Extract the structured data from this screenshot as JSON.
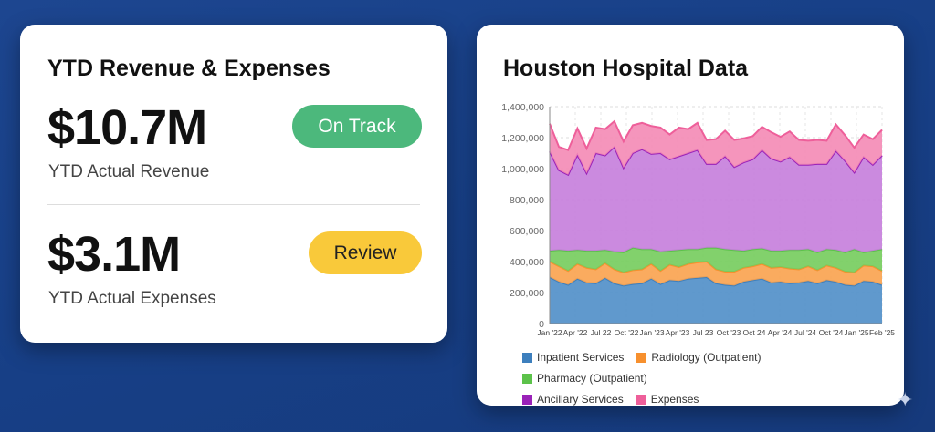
{
  "left_card": {
    "title": "YTD Revenue & Expenses",
    "revenue": {
      "value": "$10.7M",
      "label": "YTD Actual Revenue",
      "status": "On Track",
      "status_color": "#4cb87c"
    },
    "expenses": {
      "value": "$3.1M",
      "label": "YTD Actual Expenses",
      "status": "Review",
      "status_color": "#f9c93a"
    }
  },
  "chart_data": {
    "type": "area",
    "title": "Houston Hospital Data",
    "stacked": true,
    "values_are_cumulative_tops": true,
    "ylim": [
      0,
      1400000
    ],
    "yticks": [
      0,
      200000,
      400000,
      600000,
      800000,
      1000000,
      1200000,
      1400000
    ],
    "ytick_labels": [
      "0",
      "200,000",
      "400,000",
      "600,000",
      "800,000",
      "1,000,000",
      "1,200,000",
      "1,400,000"
    ],
    "xtick_labels": [
      "Jan '22",
      "Apr '22",
      "Jul 22",
      "Oct '22",
      "Jan '23",
      "Apr '23",
      "Jul 23",
      "Oct '23",
      "Oct 24",
      "Apr '24",
      "Jul '24",
      "Oct '24",
      "Jan '25",
      "Feb '25"
    ],
    "grid": true,
    "legend_position": "bottom",
    "series": [
      {
        "name": "Inpatient Services",
        "color": "#3d7fbd",
        "values": [
          300,
          270,
          250,
          290,
          265,
          260,
          295,
          260,
          245,
          255,
          260,
          290,
          255,
          280,
          275,
          290,
          295,
          300,
          260,
          250,
          245,
          270,
          280,
          290,
          265,
          270,
          260,
          265,
          275,
          260,
          280,
          270,
          250,
          245,
          275,
          270,
          250
        ]
      },
      {
        "name": "Radiology (Outpatient)",
        "color": "#f7902e",
        "values": [
          400,
          370,
          340,
          385,
          360,
          350,
          390,
          350,
          330,
          345,
          350,
          385,
          340,
          380,
          365,
          385,
          395,
          400,
          350,
          335,
          335,
          360,
          370,
          385,
          360,
          365,
          355,
          350,
          370,
          345,
          375,
          360,
          335,
          330,
          375,
          370,
          340
        ]
      },
      {
        "name": "Pharmacy (Outpatient)",
        "color": "#5cc24a",
        "values": [
          470,
          475,
          470,
          475,
          470,
          470,
          475,
          465,
          460,
          490,
          480,
          480,
          465,
          470,
          475,
          480,
          480,
          490,
          490,
          480,
          475,
          470,
          480,
          485,
          470,
          470,
          475,
          475,
          480,
          460,
          480,
          475,
          460,
          480,
          460,
          470,
          480
        ]
      },
      {
        "name": "Ancillary Services",
        "color": "#9a22b8",
        "values": [
          1110,
          990,
          960,
          1090,
          970,
          1100,
          1085,
          1140,
          1005,
          1100,
          1125,
          1095,
          1100,
          1060,
          1080,
          1100,
          1120,
          1030,
          1030,
          1080,
          1010,
          1040,
          1060,
          1120,
          1065,
          1045,
          1075,
          1025,
          1025,
          1030,
          1030,
          1115,
          1050,
          975,
          1075,
          1025,
          1085
        ]
      },
      {
        "name": "Expenses",
        "color": "#ee5f9a",
        "values": [
          1290,
          1140,
          1120,
          1260,
          1130,
          1265,
          1255,
          1305,
          1175,
          1280,
          1295,
          1275,
          1265,
          1220,
          1265,
          1255,
          1295,
          1185,
          1190,
          1245,
          1185,
          1195,
          1210,
          1270,
          1235,
          1205,
          1240,
          1185,
          1180,
          1185,
          1180,
          1285,
          1215,
          1135,
          1220,
          1190,
          1250
        ]
      }
    ],
    "value_unit": "thousands"
  }
}
